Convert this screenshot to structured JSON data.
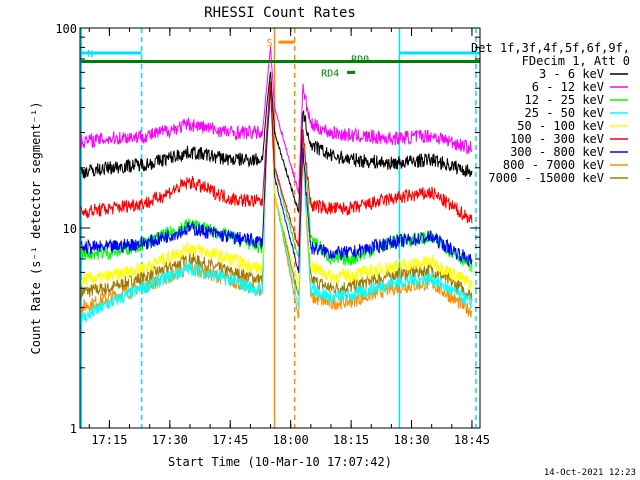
{
  "chart_data": {
    "type": "line",
    "title": "RHESSI Count Rates",
    "xlabel": "Start Time (10-Mar-10 17:07:42)",
    "ylabel": "Count Rate (s⁻¹ detector segment⁻¹)",
    "y_scale": "log",
    "ylim": [
      1,
      100
    ],
    "xlim": [
      "17:07:42",
      "18:47:00"
    ],
    "x_ticks": [
      "17:15",
      "17:30",
      "17:45",
      "18:00",
      "18:15",
      "18:30",
      "18:45"
    ],
    "y_ticks": [
      "1",
      "10",
      "100"
    ],
    "legend_header": [
      "Det 1f,3f,4f,5f,6f,9f,",
      "FDecim 1, Att 0"
    ],
    "legend_position": "right",
    "series": [
      {
        "name": "3 - 6 keV",
        "color": "#000000",
        "x": [
          "17:08",
          "17:15",
          "17:25",
          "17:35",
          "17:45",
          "17:53",
          "17:54",
          "17:55",
          "17:56",
          "18:02",
          "18:03",
          "18:05",
          "18:10",
          "18:15",
          "18:25",
          "18:35",
          "18:45"
        ],
        "values": [
          19,
          20,
          21,
          24,
          22,
          22,
          40,
          60,
          30,
          12,
          38,
          26,
          23,
          22,
          21,
          22,
          19
        ]
      },
      {
        "name": "6 - 12 keV",
        "color": "#ff00ff",
        "x": [
          "17:08",
          "17:15",
          "17:25",
          "17:35",
          "17:45",
          "17:53",
          "17:54",
          "17:55",
          "17:56",
          "18:02",
          "18:03",
          "18:05",
          "18:10",
          "18:15",
          "18:25",
          "18:35",
          "18:45"
        ],
        "values": [
          27,
          28,
          29,
          33,
          30,
          30,
          50,
          80,
          40,
          15,
          50,
          33,
          30,
          29,
          28,
          29,
          25
        ]
      },
      {
        "name": "12 - 25 keV",
        "color": "#00ff00",
        "x": [
          "17:08",
          "17:15",
          "17:25",
          "17:35",
          "17:45",
          "17:53",
          "17:54",
          "17:55",
          "17:56",
          "18:02",
          "18:03",
          "18:05",
          "18:10",
          "18:15",
          "18:25",
          "18:35",
          "18:45"
        ],
        "values": [
          7.5,
          7.5,
          8.5,
          10.5,
          9,
          8,
          30,
          55,
          20,
          7,
          30,
          9,
          7,
          7,
          8.5,
          9,
          6.5
        ]
      },
      {
        "name": "25 - 50 keV",
        "color": "#00ffff",
        "x": [
          "17:08",
          "17:15",
          "17:25",
          "17:35",
          "17:45",
          "17:53",
          "17:54",
          "17:55",
          "17:56",
          "18:02",
          "18:03",
          "18:05",
          "18:10",
          "18:15",
          "18:25",
          "18:35",
          "18:45"
        ],
        "values": [
          3.5,
          4.2,
          5.2,
          6.3,
          5.5,
          4.8,
          25,
          50,
          15,
          4,
          25,
          5,
          4.5,
          4.6,
          5.3,
          5.6,
          4.2
        ]
      },
      {
        "name": "50 - 100 keV",
        "color": "#ffff00",
        "x": [
          "17:08",
          "17:15",
          "17:25",
          "17:35",
          "17:45",
          "17:53",
          "17:54",
          "17:55",
          "17:56",
          "18:02",
          "18:03",
          "18:05",
          "18:10",
          "18:15",
          "18:25",
          "18:35",
          "18:45"
        ],
        "values": [
          5.5,
          5.7,
          6.5,
          8,
          7,
          6.2,
          25,
          50,
          15,
          5,
          25,
          6.5,
          5.7,
          5.8,
          6.4,
          6.8,
          5.2
        ]
      },
      {
        "name": "100 - 300 keV",
        "color": "#ff0000",
        "x": [
          "17:08",
          "17:15",
          "17:25",
          "17:35",
          "17:45",
          "17:53",
          "17:54",
          "17:55",
          "17:56",
          "18:02",
          "18:03",
          "18:05",
          "18:10",
          "18:15",
          "18:25",
          "18:35",
          "18:45"
        ],
        "values": [
          12,
          12.5,
          13.5,
          17,
          14,
          13.5,
          30,
          55,
          20,
          8,
          30,
          13,
          12.5,
          12.5,
          14,
          15,
          11
        ]
      },
      {
        "name": "300 - 800 keV",
        "color": "#0000ff",
        "x": [
          "17:08",
          "17:15",
          "17:25",
          "17:35",
          "17:45",
          "17:53",
          "17:54",
          "17:55",
          "17:56",
          "18:02",
          "18:03",
          "18:05",
          "18:10",
          "18:15",
          "18:25",
          "18:35",
          "18:45"
        ],
        "values": [
          8,
          8,
          8.5,
          10,
          9,
          8.5,
          25,
          50,
          18,
          6,
          25,
          8,
          7.5,
          7.5,
          8.5,
          9,
          6.8
        ]
      },
      {
        "name": "800 - 7000 keV",
        "color": "#ff8c00",
        "x": [
          "17:08",
          "17:15",
          "17:25",
          "17:35",
          "17:45",
          "17:53",
          "17:54",
          "17:55",
          "17:56",
          "18:02",
          "18:03",
          "18:05",
          "18:10",
          "18:15",
          "18:25",
          "18:35",
          "18:45"
        ],
        "values": [
          4,
          4.5,
          5.2,
          6.3,
          5.5,
          4.8,
          25,
          50,
          15,
          3.5,
          25,
          4.5,
          4.2,
          4.3,
          5,
          5.3,
          3.8
        ]
      },
      {
        "name": "7000 - 15000 keV",
        "color": "#a07800",
        "x": [
          "17:08",
          "17:15",
          "17:25",
          "17:35",
          "17:45",
          "17:53",
          "17:54",
          "17:55",
          "17:56",
          "18:02",
          "18:03",
          "18:05",
          "18:10",
          "18:15",
          "18:25",
          "18:35",
          "18:45"
        ],
        "values": [
          4.8,
          5,
          5.8,
          7,
          6,
          5.5,
          25,
          50,
          15,
          4.5,
          25,
          5.5,
          5,
          5.1,
          5.8,
          6.2,
          4.6
        ]
      }
    ],
    "annotations": [
      {
        "label": "N",
        "color": "#00e0ff",
        "x_start": "17:08",
        "x_end": "17:23",
        "y": 75
      },
      {
        "label": "",
        "color": "#00e0ff",
        "x_start": "18:27",
        "x_end": "18:47",
        "y": 75
      },
      {
        "label": "S",
        "color": "#ff8c00",
        "x_start": "17:57",
        "x_end": "18:01",
        "y": 85
      },
      {
        "label": "RD0",
        "color": "#008000",
        "x_start": "17:08",
        "x_end": "18:47",
        "y": 68
      },
      {
        "label": "RD4",
        "color": "#008000",
        "x_start": "18:14",
        "x_end": "18:16",
        "y": 60
      }
    ],
    "vertical_lines": [
      {
        "x": "17:08",
        "color": "#00e0ff",
        "style": "solid"
      },
      {
        "x": "17:23",
        "color": "#00e0ff",
        "style": "dashed"
      },
      {
        "x": "17:56",
        "color": "#ff8c00",
        "style": "solid"
      },
      {
        "x": "18:01",
        "color": "#ff8c00",
        "style": "dashed"
      },
      {
        "x": "18:27",
        "color": "#00e0ff",
        "style": "solid"
      },
      {
        "x": "18:46",
        "color": "#00e0ff",
        "style": "dashed"
      }
    ],
    "grid": false
  },
  "footer_timestamp": "14-Oct-2021 12:23"
}
